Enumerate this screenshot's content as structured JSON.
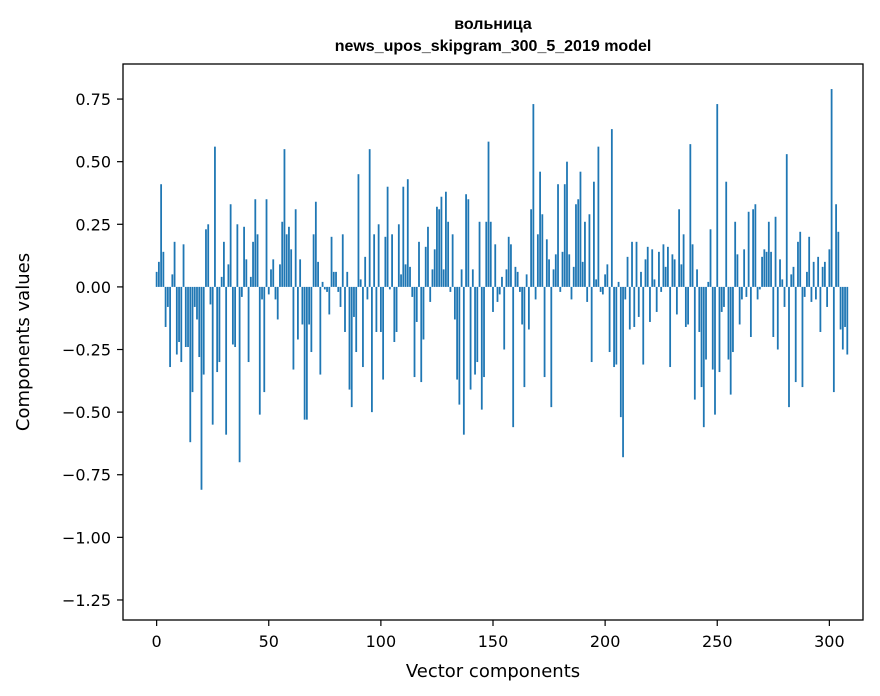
{
  "chart_data": {
    "type": "bar",
    "title": "вольница",
    "subtitle": "news_upos_skipgram_300_5_2019 model",
    "xlabel": "Vector components",
    "ylabel": "Components values",
    "xlim": [
      -15,
      315
    ],
    "ylim": [
      -1.33,
      0.89
    ],
    "xticks": [
      0,
      50,
      100,
      150,
      200,
      250,
      300
    ],
    "yticks": [
      0.75,
      0.5,
      0.25,
      0.0,
      -0.25,
      -0.5,
      -0.75,
      -1.0,
      -1.25
    ],
    "yticklabels": [
      "0.75",
      "0.50",
      "0.25",
      "0.00",
      "−0.25",
      "−0.50",
      "−0.75",
      "−1.00",
      "−1.25"
    ],
    "bar_color": "#1f77b4",
    "grid": false,
    "values": [
      0.06,
      0.1,
      0.41,
      0.14,
      -0.16,
      -0.08,
      -0.32,
      0.05,
      0.18,
      -0.27,
      -0.22,
      -0.3,
      0.17,
      -0.24,
      -0.24,
      -0.62,
      -0.42,
      -0.08,
      -0.13,
      -0.28,
      -0.81,
      -0.35,
      0.23,
      0.25,
      -0.07,
      -0.55,
      0.56,
      -0.34,
      -0.3,
      0.04,
      0.18,
      -0.59,
      0.09,
      0.33,
      -0.23,
      -0.24,
      0.25,
      -0.7,
      -0.04,
      0.24,
      0.11,
      -0.3,
      0.04,
      0.18,
      0.35,
      0.21,
      -0.51,
      -0.05,
      -0.42,
      0.35,
      -0.03,
      0.07,
      0.11,
      -0.05,
      -0.13,
      0.09,
      0.26,
      0.55,
      0.21,
      0.24,
      0.15,
      -0.33,
      0.31,
      -0.21,
      0.11,
      -0.15,
      -0.53,
      -0.53,
      -0.15,
      -0.26,
      0.21,
      0.34,
      0.1,
      -0.35,
      0.02,
      -0.01,
      -0.02,
      -0.11,
      0.2,
      0.06,
      0.06,
      -0.02,
      -0.08,
      0.21,
      -0.18,
      0.06,
      -0.41,
      -0.48,
      -0.12,
      -0.26,
      0.45,
      0.03,
      -0.32,
      0.12,
      -0.05,
      0.55,
      -0.5,
      0.21,
      -0.18,
      0.25,
      -0.18,
      -0.37,
      0.2,
      0.4,
      -0.01,
      0.21,
      -0.22,
      -0.18,
      0.25,
      0.05,
      0.4,
      0.09,
      0.43,
      0.08,
      -0.04,
      -0.36,
      -0.14,
      0.18,
      -0.38,
      -0.21,
      0.16,
      0.24,
      -0.06,
      0.07,
      0.15,
      0.32,
      0.31,
      0.36,
      0.07,
      0.38,
      0.26,
      -0.02,
      0.21,
      -0.13,
      -0.37,
      -0.47,
      0.07,
      -0.59,
      0.37,
      0.35,
      -0.41,
      0.07,
      -0.35,
      -0.3,
      0.26,
      -0.49,
      -0.36,
      0.26,
      0.58,
      0.26,
      -0.1,
      0.17,
      -0.06,
      -0.03,
      0.04,
      -0.25,
      0.07,
      0.2,
      0.17,
      -0.56,
      0.08,
      0.06,
      -0.02,
      -0.15,
      -0.4,
      0.05,
      -0.17,
      0.31,
      0.73,
      -0.05,
      0.21,
      0.46,
      0.29,
      -0.36,
      0.19,
      0.11,
      -0.48,
      0.07,
      0.13,
      0.41,
      -0.02,
      0.14,
      0.41,
      0.5,
      0.13,
      -0.05,
      0.08,
      0.33,
      0.35,
      0.46,
      0.1,
      0.26,
      -0.06,
      0.29,
      -0.3,
      0.42,
      0.03,
      0.56,
      -0.02,
      -0.03,
      0.05,
      0.09,
      -0.26,
      0.63,
      -0.32,
      -0.31,
      0.02,
      -0.52,
      -0.68,
      -0.05,
      0.12,
      -0.17,
      0.18,
      -0.16,
      0.18,
      -0.12,
      0.06,
      -0.31,
      0.11,
      0.16,
      -0.14,
      0.15,
      0.03,
      -0.1,
      0.14,
      -0.02,
      0.17,
      0.08,
      0.16,
      -0.32,
      0.13,
      0.11,
      -0.11,
      0.31,
      0.09,
      0.21,
      -0.16,
      -0.15,
      0.57,
      0.17,
      -0.45,
      0.07,
      -0.18,
      -0.4,
      -0.56,
      -0.29,
      0.02,
      0.23,
      -0.33,
      -0.51,
      0.73,
      -0.34,
      -0.1,
      -0.08,
      0.42,
      -0.29,
      -0.43,
      -0.26,
      0.26,
      0.13,
      -0.15,
      -0.05,
      0.15,
      -0.04,
      0.3,
      -0.2,
      0.31,
      0.33,
      -0.05,
      -0.01,
      0.12,
      0.15,
      0.14,
      0.26,
      0.14,
      -0.2,
      0.28,
      -0.25,
      0.11,
      0.03,
      -0.08,
      0.53,
      -0.48,
      0.05,
      0.08,
      -0.38,
      0.18,
      0.22,
      -0.4,
      -0.04,
      0.06,
      0.2,
      -0.06,
      0.1,
      -0.05,
      0.12,
      -0.18,
      0.08,
      0.1,
      -0.08,
      0.15,
      0.79,
      -0.42,
      0.33,
      0.22,
      -0.17,
      -0.25,
      -0.16,
      -0.27
    ]
  }
}
